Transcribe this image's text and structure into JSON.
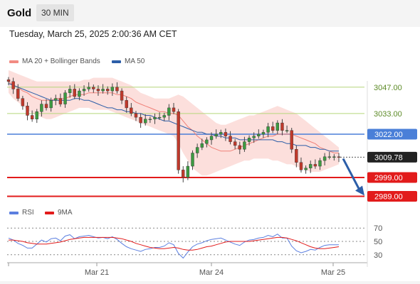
{
  "header": {
    "symbol": "Gold",
    "timeframe": "30 MIN",
    "datetime": "Tuesday, March 25, 2025 2:00:36 AM CET"
  },
  "legend_main": [
    {
      "label": "MA 20 + Bollinger Bands",
      "color": "#f28b82"
    },
    {
      "label": "MA 50",
      "color": "#2c5ea8"
    }
  ],
  "legend_rsi": [
    {
      "label": "RSI",
      "color": "#5b7fe0"
    },
    {
      "label": "9MA",
      "color": "#e21b1b"
    }
  ],
  "chart_data": [
    {
      "type": "candlestick",
      "title": "Gold",
      "x_ticks": [
        "Mar 21",
        "Mar 24",
        "Mar 25"
      ],
      "horizontal_levels": [
        {
          "label": "3047.00",
          "value": 3047.0,
          "color": "#b5d67a"
        },
        {
          "label": "3033.00",
          "value": 3033.0,
          "color": "#b5d67a"
        },
        {
          "label": "3022.00",
          "value": 3022.0,
          "color": "#4a7fd8"
        },
        {
          "label": "3009.78",
          "value": 3009.78,
          "color": "#222222"
        },
        {
          "label": "2999.00",
          "value": 2999.0,
          "color": "#e21b1b"
        },
        {
          "label": "2989.00",
          "value": 2989.0,
          "color": "#e21b1b"
        }
      ],
      "current_price": 3009.78,
      "forecast_arrow": {
        "from": 3009.78,
        "to": 2989.0,
        "color": "#2c5ea8"
      },
      "close": [
        3050,
        3046,
        3041,
        3037,
        3032,
        3030,
        3034,
        3038,
        3036,
        3040,
        3041,
        3038,
        3044,
        3046,
        3042,
        3045,
        3046,
        3047,
        3046,
        3045,
        3046,
        3045,
        3047,
        3045,
        3040,
        3036,
        3033,
        3031,
        3028,
        3030,
        3030,
        3031,
        3031,
        3032,
        3036,
        3034,
        3003,
        2999,
        3005,
        3012,
        3015,
        3017,
        3019,
        3021,
        3022,
        3023,
        3021,
        3018,
        3016,
        3014,
        3018,
        3020,
        3021,
        3022,
        3023,
        3026,
        3024,
        3028,
        3024,
        3024,
        3014,
        3007,
        3003,
        3004,
        3006,
        3005,
        3008,
        3010,
        3010,
        3010,
        3009.78
      ],
      "ma20": [
        3050,
        3048,
        3047,
        3045,
        3044,
        3042,
        3041,
        3040,
        3040,
        3040,
        3041,
        3041,
        3041,
        3042,
        3043,
        3043,
        3043,
        3044,
        3044,
        3044,
        3044,
        3044,
        3044,
        3043,
        3043,
        3042,
        3041,
        3039,
        3038,
        3037,
        3036,
        3035,
        3034,
        3034,
        3033,
        3033,
        3032,
        3029,
        3026,
        3024,
        3021,
        3019,
        3017,
        3015,
        3014,
        3013,
        3013,
        3013,
        3014,
        3015,
        3016,
        3017,
        3018,
        3019,
        3020,
        3021,
        3021,
        3022,
        3022,
        3022,
        3022,
        3021,
        3020,
        3019,
        3018,
        3017,
        3015,
        3014,
        3013,
        3012,
        3012
      ],
      "ma50": [
        3049,
        3048,
        3047,
        3046,
        3045,
        3044,
        3043,
        3042,
        3041,
        3040,
        3040,
        3040,
        3040,
        3040,
        3041,
        3041,
        3040,
        3040,
        3039,
        3038,
        3037,
        3036,
        3036,
        3035,
        3035,
        3034,
        3034,
        3033,
        3033,
        3032,
        3032,
        3031,
        3030,
        3029,
        3029,
        3028,
        3027,
        3026,
        3025,
        3024,
        3023,
        3023,
        3022,
        3022,
        3021,
        3021,
        3020,
        3020,
        3020,
        3019,
        3019,
        3019,
        3019,
        3019,
        3019,
        3019,
        3019,
        3018,
        3018,
        3017,
        3017,
        3016,
        3016,
        3016,
        3015,
        3015,
        3014,
        3014,
        3013,
        3013,
        3013
      ],
      "bb_upper": [
        3056,
        3055,
        3054,
        3053,
        3052,
        3051,
        3050,
        3050,
        3050,
        3050,
        3050,
        3050,
        3050,
        3050,
        3050,
        3050,
        3051,
        3051,
        3052,
        3052,
        3052,
        3052,
        3052,
        3051,
        3050,
        3049,
        3048,
        3046,
        3044,
        3043,
        3042,
        3041,
        3041,
        3041,
        3041,
        3042,
        3043,
        3042,
        3040,
        3038,
        3036,
        3034,
        3032,
        3030,
        3028,
        3027,
        3027,
        3028,
        3029,
        3030,
        3031,
        3032,
        3032,
        3033,
        3034,
        3035,
        3036,
        3037,
        3036,
        3035,
        3034,
        3033,
        3031,
        3029,
        3027,
        3025,
        3023,
        3021,
        3019,
        3017,
        3015
      ],
      "bb_lower": [
        3044,
        3041,
        3039,
        3037,
        3035,
        3033,
        3032,
        3031,
        3030,
        3030,
        3031,
        3032,
        3033,
        3034,
        3035,
        3036,
        3036,
        3036,
        3035,
        3035,
        3035,
        3035,
        3034,
        3033,
        3032,
        3031,
        3030,
        3029,
        3028,
        3027,
        3026,
        3025,
        3024,
        3023,
        3022,
        3021,
        3017,
        3012,
        3008,
        3004,
        3002,
        3000,
        3000,
        3001,
        3002,
        3003,
        3004,
        3005,
        3006,
        3007,
        3008,
        3008,
        3009,
        3009,
        3009,
        3009,
        3008,
        3008,
        3007,
        3006,
        3006,
        3005,
        3004,
        3003,
        3002,
        3002,
        3002,
        3003,
        3004,
        3005,
        3006
      ]
    },
    {
      "type": "line",
      "title": "RSI",
      "y_ticks": [
        70,
        50,
        30
      ],
      "ylim": [
        20,
        80
      ],
      "series": [
        {
          "name": "RSI",
          "color": "#5b7fe0",
          "values": [
            55,
            52,
            47,
            44,
            40,
            40,
            46,
            52,
            49,
            54,
            55,
            51,
            58,
            60,
            54,
            57,
            58,
            59,
            57,
            55,
            56,
            54,
            57,
            53,
            47,
            42,
            39,
            37,
            35,
            38,
            39,
            41,
            41,
            43,
            48,
            45,
            32,
            25,
            34,
            42,
            46,
            48,
            51,
            53,
            54,
            55,
            52,
            49,
            46,
            44,
            49,
            52,
            53,
            55,
            56,
            59,
            57,
            61,
            55,
            55,
            43,
            36,
            33,
            35,
            38,
            37,
            41,
            44,
            45,
            45,
            45
          ]
        },
        {
          "name": "9MA",
          "color": "#e21b1b",
          "values": [
            52,
            52,
            51,
            50,
            48,
            47,
            46,
            46,
            46,
            47,
            48,
            49,
            51,
            53,
            54,
            55,
            56,
            56,
            56,
            56,
            56,
            56,
            56,
            55,
            54,
            52,
            50,
            47,
            45,
            43,
            41,
            40,
            39,
            39,
            40,
            41,
            40,
            38,
            37,
            37,
            38,
            40,
            42,
            43,
            45,
            47,
            49,
            50,
            50,
            50,
            50,
            50,
            51,
            52,
            53,
            54,
            55,
            56,
            56,
            55,
            53,
            51,
            48,
            45,
            42,
            40,
            39,
            39,
            40,
            41,
            42
          ]
        }
      ]
    }
  ]
}
